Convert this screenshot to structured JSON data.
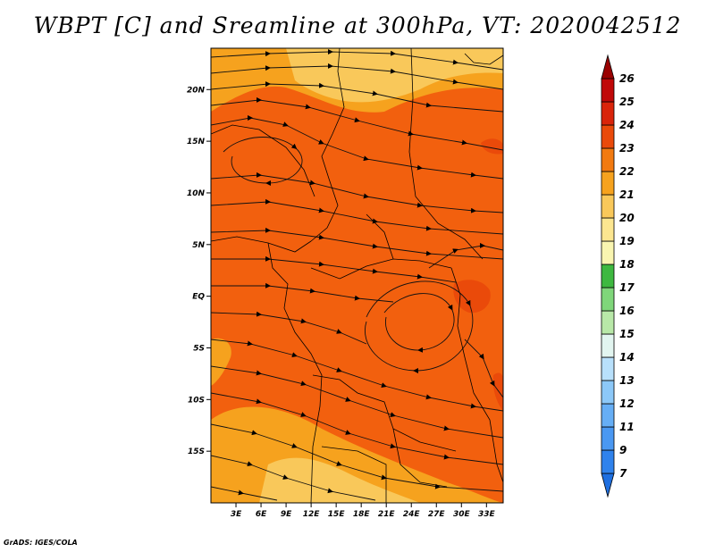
{
  "title": "WBPT [C] and Sreamline at 300hPa, VT: 2020042512",
  "credit": "GrADS: IGES/COLA",
  "map": {
    "lon_range": [
      0,
      35
    ],
    "lat_range": [
      -20,
      24
    ],
    "lon_ticks": [
      3,
      6,
      9,
      12,
      15,
      18,
      21,
      24,
      27,
      30,
      33
    ],
    "lon_tick_labels": [
      "3E",
      "6E",
      "9E",
      "12E",
      "15E",
      "18E",
      "21E",
      "24E",
      "27E",
      "30E",
      "33E"
    ],
    "lat_ticks": [
      20,
      15,
      10,
      5,
      0,
      -5,
      -10,
      -15
    ],
    "lat_tick_labels": [
      "20N",
      "15N",
      "10N",
      "5N",
      "EQ",
      "5S",
      "10S",
      "15S"
    ],
    "base_color": "#f2600e"
  },
  "colorbar": {
    "labels": [
      "7",
      "9",
      "11",
      "12",
      "13",
      "14",
      "15",
      "16",
      "17",
      "18",
      "19",
      "20",
      "21",
      "22",
      "23",
      "24",
      "25",
      "26"
    ],
    "colors": [
      "#1e6fe0",
      "#2f82ec",
      "#4a98f2",
      "#66aef5",
      "#8cc8f8",
      "#b8e0fb",
      "#e2f5f0",
      "#b8e8a8",
      "#7fd67a",
      "#3eb840",
      "#f9f5b0",
      "#fce690",
      "#f9c85a",
      "#f6a21e",
      "#f27a10",
      "#ea4a0a",
      "#d9240a",
      "#c00808",
      "#9a0202"
    ]
  }
}
